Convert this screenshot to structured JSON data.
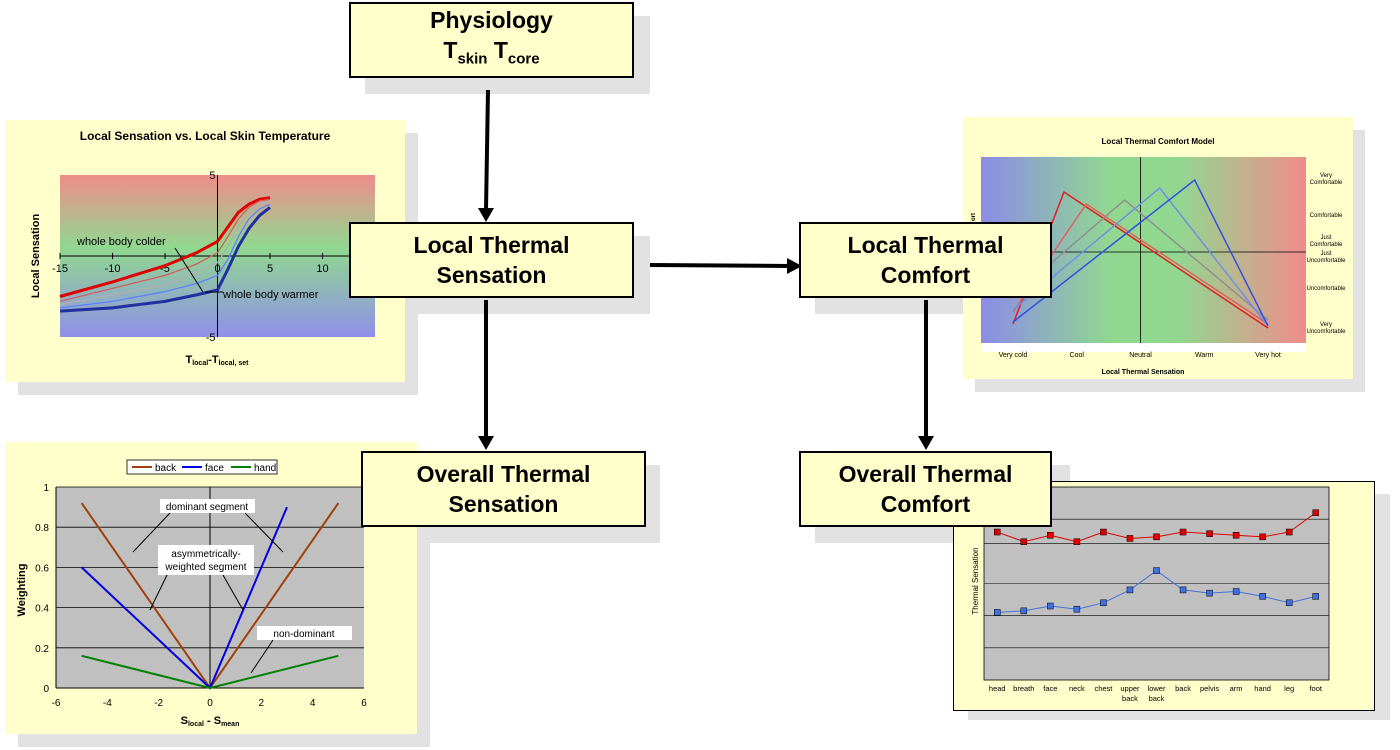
{
  "boxes": {
    "physiology": {
      "line1": "Physiology",
      "t1": "T",
      "s1": "skin",
      "t2": "T",
      "s2": "core"
    },
    "local_sensation": {
      "line1": "Local Thermal",
      "line2": "Sensation"
    },
    "overall_sensation": {
      "line1": "Overall Thermal",
      "line2": "Sensation"
    },
    "local_comfort": {
      "line1": "Local Thermal",
      "line2": "Comfort"
    },
    "overall_comfort": {
      "line1": "Overall Thermal",
      "line2": "Comfort"
    }
  },
  "chart_data": [
    {
      "type": "line",
      "title": "Local Sensation vs. Local Skin Temperature",
      "ylabel": "Local Sensation",
      "xlabel_main": "T",
      "xlabel_sub1": "local",
      "xlabel_mid": "-T",
      "xlabel_sub2": "local, set",
      "xlim": [
        -15,
        15
      ],
      "ylim": [
        -5,
        5
      ],
      "xticks": [
        "-15",
        "-10",
        "-5",
        "0",
        "5",
        "10"
      ],
      "yticks": [
        "5",
        "-5"
      ],
      "annotations": [
        "whole body colder",
        "whole body warmer"
      ],
      "series": [
        {
          "color": "#e00000",
          "x": [
            -15,
            -10,
            -5,
            -2,
            0,
            1,
            2,
            3,
            4,
            5
          ],
          "y": [
            -2.5,
            -1.6,
            -0.6,
            0.2,
            0.9,
            1.8,
            2.7,
            3.2,
            3.5,
            3.6
          ]
        },
        {
          "color": "#d06060",
          "x": [
            -15,
            -10,
            -5,
            -2,
            0,
            1,
            2,
            3,
            4,
            5
          ],
          "y": [
            -2.8,
            -2.0,
            -1.2,
            -0.5,
            0.2,
            1.2,
            2.3,
            3.0,
            3.4,
            3.5
          ]
        },
        {
          "color": "#b0b0b0",
          "x": [
            -15,
            -10,
            -5,
            -2,
            0,
            1,
            2,
            3,
            4,
            5
          ],
          "y": [
            -3.0,
            -2.4,
            -1.8,
            -1.0,
            -0.4,
            0.6,
            1.8,
            2.7,
            3.2,
            3.4
          ]
        },
        {
          "color": "#6080ff",
          "x": [
            -15,
            -10,
            -5,
            -2,
            0,
            1,
            2,
            3,
            4,
            5
          ],
          "y": [
            -3.2,
            -2.8,
            -2.2,
            -1.7,
            -1.2,
            -0.2,
            1.2,
            2.3,
            2.9,
            3.2
          ]
        },
        {
          "color": "#2030a0",
          "x": [
            -15,
            -10,
            -5,
            -2,
            0,
            1,
            2,
            3,
            4,
            5
          ],
          "y": [
            -3.4,
            -3.2,
            -2.8,
            -2.4,
            -2.1,
            -0.8,
            0.6,
            1.7,
            2.5,
            3.0
          ]
        }
      ]
    },
    {
      "type": "line",
      "title": "Local Thermal Comfort Model",
      "xlabel": "Local Thermal Sensation",
      "ylabel": "ort",
      "xticks": [
        "Very cold",
        "Cool",
        "Neutral",
        "Warm",
        "Very hot"
      ],
      "yticks": [
        "Very Comfortable",
        "Comfortable",
        "Just Comfortable",
        "Just Uncomfortable",
        "Uncomfortable",
        "Very Uncomfortable"
      ],
      "xlim": [
        -4,
        4
      ],
      "ylim": [
        -4,
        4
      ],
      "series": [
        {
          "color": "#e02020",
          "x": [
            -4,
            -2.4,
            4
          ],
          "y": [
            -3.6,
            3.0,
            -3.8
          ]
        },
        {
          "color": "#e06060",
          "x": [
            -4,
            -1.7,
            4
          ],
          "y": [
            -3.0,
            2.4,
            -3.6
          ]
        },
        {
          "color": "#909090",
          "x": [
            -4,
            -0.5,
            4
          ],
          "y": [
            -2.2,
            2.6,
            -3.4
          ]
        },
        {
          "color": "#7090e0",
          "x": [
            -4,
            0.6,
            4
          ],
          "y": [
            -2.9,
            3.2,
            -3.7
          ]
        },
        {
          "color": "#3050e0",
          "x": [
            -4,
            1.7,
            4
          ],
          "y": [
            -3.5,
            3.6,
            -3.7
          ]
        }
      ]
    },
    {
      "type": "line",
      "ylabel": "Weighting",
      "xlabel_main": "S",
      "xlabel_sub1": "local",
      "xlabel_mid": " - S",
      "xlabel_sub2": "mean",
      "xlim": [
        -6,
        6
      ],
      "ylim": [
        0,
        1
      ],
      "xticks": [
        "-6",
        "-4",
        "-2",
        "0",
        "2",
        "4",
        "6"
      ],
      "yticks": [
        "0",
        "0.2",
        "0.4",
        "0.6",
        "0.8",
        "1"
      ],
      "legend": [
        "back",
        "face",
        "hand"
      ],
      "annotations": [
        "dominant segment",
        "asymmetrically-",
        "weighted segment",
        "non-dominant"
      ],
      "series": [
        {
          "name": "back",
          "color": "#a0400a",
          "x": [
            -5,
            0,
            5
          ],
          "y": [
            0.92,
            0,
            0.92
          ]
        },
        {
          "name": "face",
          "color": "#0000e0",
          "x": [
            -5,
            0,
            3
          ],
          "y": [
            0.6,
            0,
            0.9
          ]
        },
        {
          "name": "hand",
          "color": "#008000",
          "x": [
            -5,
            0,
            5
          ],
          "y": [
            0.16,
            0,
            0.16
          ]
        }
      ]
    },
    {
      "type": "line",
      "ylabel": "Thermal Sensation",
      "categories": [
        "head",
        "breath",
        "face",
        "neck",
        "chest",
        "upper back",
        "lower back",
        "back",
        "pelvis",
        "arm",
        "hand",
        "leg",
        "foot"
      ],
      "series": [
        {
          "color": "#e00000",
          "values": [
            1.6,
            1.3,
            1.5,
            1.3,
            1.6,
            1.4,
            1.45,
            1.6,
            1.55,
            1.5,
            1.45,
            1.6,
            2.2
          ]
        },
        {
          "color": "#4070e0",
          "values": [
            -0.9,
            -0.85,
            -0.7,
            -0.8,
            -0.6,
            -0.2,
            0.4,
            -0.2,
            -0.3,
            -0.25,
            -0.4,
            -0.6,
            -0.4
          ]
        }
      ]
    }
  ]
}
